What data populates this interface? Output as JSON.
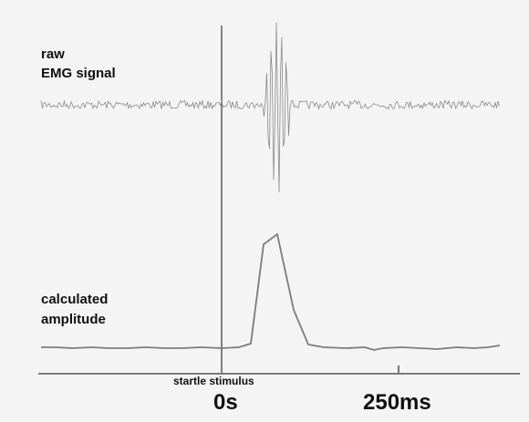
{
  "labels": {
    "raw_line1": "raw",
    "raw_line2": "EMG signal",
    "amplitude_line1": "calculated",
    "amplitude_line2": "amplitude",
    "stimulus": "startle stimulus",
    "t0": "0s",
    "t250": "250ms"
  },
  "colors": {
    "background": "#f4f4f4",
    "axis": "#7a7a7a",
    "stimulus_line": "#666666",
    "raw_signal": "#8a8a8a",
    "amplitude_trace": "#7c7c7c",
    "text": "#111111"
  }
}
